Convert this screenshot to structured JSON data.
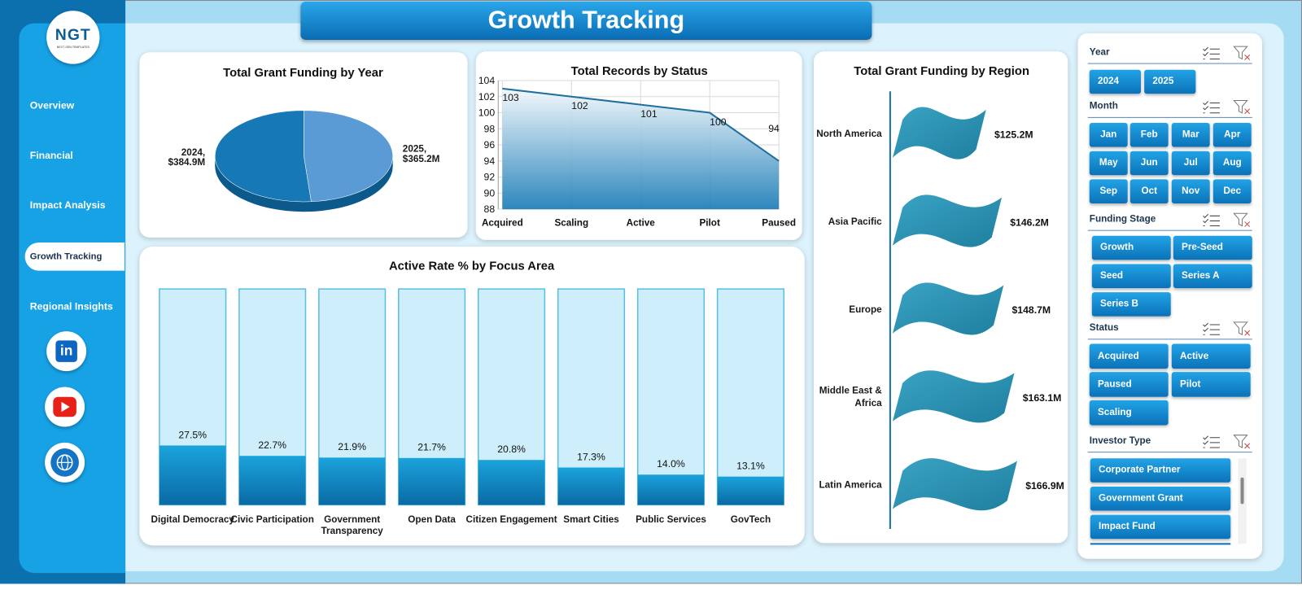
{
  "header": {
    "title": "Growth Tracking"
  },
  "logo": {
    "mark": "NGT",
    "tagline": "NEXT GEN TEMPLATES"
  },
  "nav": [
    "Overview",
    "Financial",
    "Impact Analysis",
    "Growth Tracking",
    "Regional Insights"
  ],
  "social": {
    "linkedin": "in"
  },
  "chart_data": [
    {
      "type": "pie",
      "title": "Total Grant Funding by Year",
      "categories": [
        "2024",
        "2025"
      ],
      "values": [
        384.9,
        365.2
      ],
      "value_labels": [
        "2024, $384.9M",
        "2025, $365.2M"
      ],
      "colors": [
        "#1679b5",
        "#5b9bd5"
      ]
    },
    {
      "type": "area",
      "title": "Total Records by Status",
      "categories": [
        "Acquired",
        "Scaling",
        "Active",
        "Pilot",
        "Paused"
      ],
      "values": [
        103,
        102,
        101,
        100,
        94
      ],
      "ylim": [
        88,
        104
      ],
      "yticks": [
        88,
        90,
        92,
        94,
        96,
        98,
        100,
        102,
        104
      ],
      "grid": true,
      "color": "#1f6f9f"
    },
    {
      "type": "bar",
      "title": "Active Rate % by Focus Area",
      "categories": [
        "Digital Democracy",
        "Civic Participation",
        "Government Transparency",
        "Open Data",
        "Citizen Engagement",
        "Smart Cities",
        "Public Services",
        "GovTech"
      ],
      "values": [
        27.5,
        22.7,
        21.9,
        21.7,
        20.8,
        17.3,
        14.0,
        13.1
      ],
      "value_labels": [
        "27.5%",
        "22.7%",
        "21.9%",
        "21.7%",
        "20.8%",
        "17.3%",
        "14.0%",
        "13.1%"
      ],
      "ylim": [
        0,
        100
      ],
      "color": "#0f86c6"
    },
    {
      "type": "flag-bar",
      "title": "Total Grant Funding by Region",
      "categories": [
        "North America",
        "Asia Pacific",
        "Europe",
        "Middle East & Africa",
        "Latin America"
      ],
      "values": [
        125.2,
        146.2,
        148.7,
        163.1,
        166.9
      ],
      "value_labels": [
        "$125.2M",
        "$146.2M",
        "$148.7M",
        "$163.1M",
        "$166.9M"
      ],
      "color": "#2a8fb0"
    }
  ],
  "slicers": [
    {
      "title": "Year",
      "items": [
        "2024",
        "2025"
      ]
    },
    {
      "title": "Month",
      "items": [
        "Jan",
        "Feb",
        "Mar",
        "Apr",
        "May",
        "Jun",
        "Jul",
        "Aug",
        "Sep",
        "Oct",
        "Nov",
        "Dec"
      ]
    },
    {
      "title": "Funding Stage",
      "items": [
        "Growth",
        "Pre-Seed",
        "Seed",
        "Series A",
        "Series B"
      ]
    },
    {
      "title": "Status",
      "items": [
        "Acquired",
        "Active",
        "Paused",
        "Pilot",
        "Scaling"
      ]
    },
    {
      "title": "Investor Type",
      "items": [
        "Corporate Partner",
        "Government Grant",
        "Impact Fund"
      ]
    }
  ]
}
